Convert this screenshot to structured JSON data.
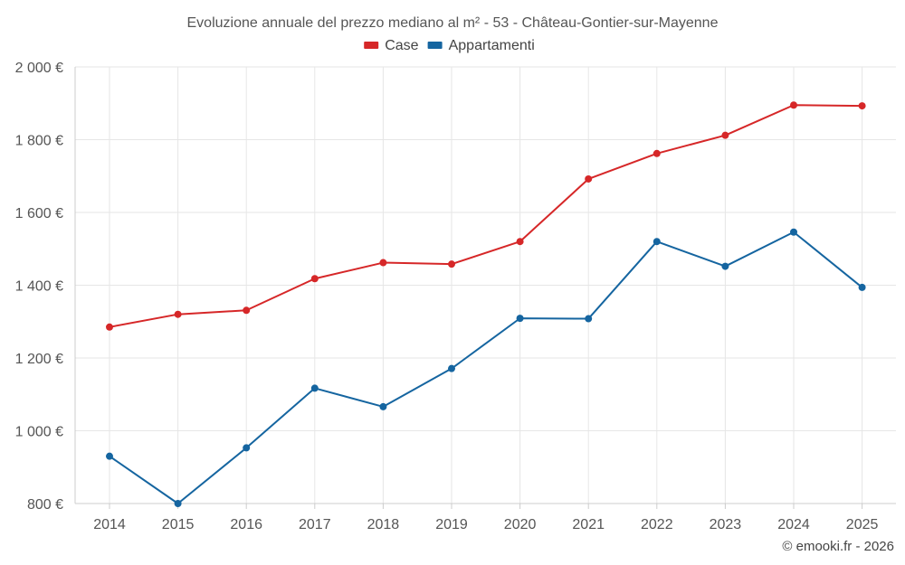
{
  "chart_data": {
    "type": "line",
    "title": "Evoluzione annuale del prezzo mediano al m² - 53 - Château-Gontier-sur-Mayenne",
    "categories": [
      "2014",
      "2015",
      "2016",
      "2017",
      "2018",
      "2019",
      "2020",
      "2021",
      "2022",
      "2023",
      "2024",
      "2025"
    ],
    "series": [
      {
        "name": "Case",
        "color": "#d62728",
        "values": [
          1285,
          1320,
          1331,
          1418,
          1462,
          1458,
          1520,
          1692,
          1762,
          1812,
          1895,
          1893
        ]
      },
      {
        "name": "Appartamenti",
        "color": "#1565a0",
        "values": [
          930,
          800,
          953,
          1117,
          1066,
          1171,
          1309,
          1308,
          1520,
          1452,
          1546,
          1394
        ]
      }
    ],
    "ylim": [
      800,
      2000
    ],
    "yticks": [
      800,
      1000,
      1200,
      1400,
      1600,
      1800,
      2000
    ],
    "ytick_labels": [
      "800 €",
      "1 000 €",
      "1 200 €",
      "1 400 €",
      "1 600 €",
      "1 800 €",
      "2 000 €"
    ],
    "legend_position": "top-center",
    "grid": true,
    "xlabel": "",
    "ylabel": ""
  },
  "credit": "© emooki.fr - 2026"
}
